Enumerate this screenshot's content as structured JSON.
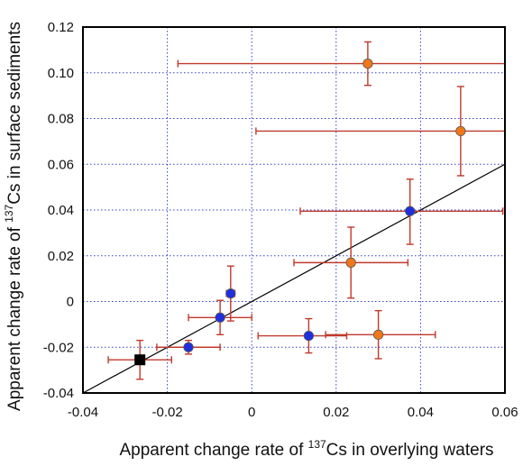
{
  "chart_data": {
    "type": "scatter",
    "title": "",
    "xlabel_parts": [
      "Apparent change rate of ",
      "137",
      "Cs in overlying waters"
    ],
    "ylabel_parts": [
      "Apparent change rate of ",
      "137",
      "Cs in surface sediments"
    ],
    "xlim": [
      -0.04,
      0.06
    ],
    "ylim": [
      -0.04,
      0.12
    ],
    "xticks": [
      -0.04,
      -0.02,
      0,
      0.02,
      0.04,
      0.06
    ],
    "xtick_labels": [
      "-0.04",
      "-0.02",
      "0",
      "0.02",
      "0.04",
      "0.06"
    ],
    "yticks": [
      -0.04,
      -0.02,
      0,
      0.02,
      0.04,
      0.06,
      0.08,
      0.1,
      0.12
    ],
    "ytick_labels": [
      "-0.04",
      "-0.02",
      "0",
      "0.02",
      "0.04",
      "0.06",
      "0.08",
      "0.10",
      "0.12"
    ],
    "grid": true,
    "colors": {
      "blue_marker": "#1f2fe0",
      "orange_marker": "#f07818",
      "black_marker": "#000000",
      "error_bar": "#c0392b",
      "fit_line": "#000000",
      "grid": "#3340c8"
    },
    "series": [
      {
        "marker": "circle",
        "color": "blue",
        "points": [
          {
            "x": -0.015,
            "y": -0.02,
            "xerr": [
              0.0075,
              0.0075
            ],
            "yerr": [
              0.003,
              0.003
            ]
          },
          {
            "x": -0.0075,
            "y": -0.007,
            "xerr": [
              0.0075,
              0.0075
            ],
            "yerr": [
              0.0075,
              0.0075
            ]
          },
          {
            "x": -0.005,
            "y": 0.0035,
            "xerr": [
              0.001,
              0.001
            ],
            "yerr": [
              0.012,
              0.012
            ]
          },
          {
            "x": 0.0135,
            "y": -0.015,
            "xerr": [
              0.012,
              0.009
            ],
            "yerr": [
              0.0075,
              0.0075
            ]
          },
          {
            "x": 0.0375,
            "y": 0.0395,
            "xerr": [
              0.026,
              0.022
            ],
            "yerr": [
              0.0145,
              0.014
            ]
          }
        ]
      },
      {
        "marker": "circle",
        "color": "orange",
        "points": [
          {
            "x": 0.0275,
            "y": 0.104,
            "xerr": [
              0.045,
              0.0325
            ],
            "yerr": [
              0.0095,
              0.0095
            ]
          },
          {
            "x": 0.0495,
            "y": 0.0745,
            "xerr": [
              0.0485,
              0.0105
            ],
            "yerr": [
              0.0195,
              0.0195
            ]
          },
          {
            "x": 0.0235,
            "y": 0.017,
            "xerr": [
              0.0135,
              0.0135
            ],
            "yerr": [
              0.0155,
              0.0155
            ]
          },
          {
            "x": 0.03,
            "y": -0.0145,
            "xerr": [
              0.0125,
              0.0135
            ],
            "yerr": [
              0.0105,
              0.0105
            ]
          }
        ]
      },
      {
        "marker": "square",
        "color": "black",
        "points": [
          {
            "x": -0.0265,
            "y": -0.0255,
            "xerr": [
              0.0075,
              0.0075
            ],
            "yerr": [
              0.0085,
              0.0085
            ]
          }
        ]
      }
    ],
    "fit_line": {
      "slope": 1,
      "intercept": 0
    }
  }
}
